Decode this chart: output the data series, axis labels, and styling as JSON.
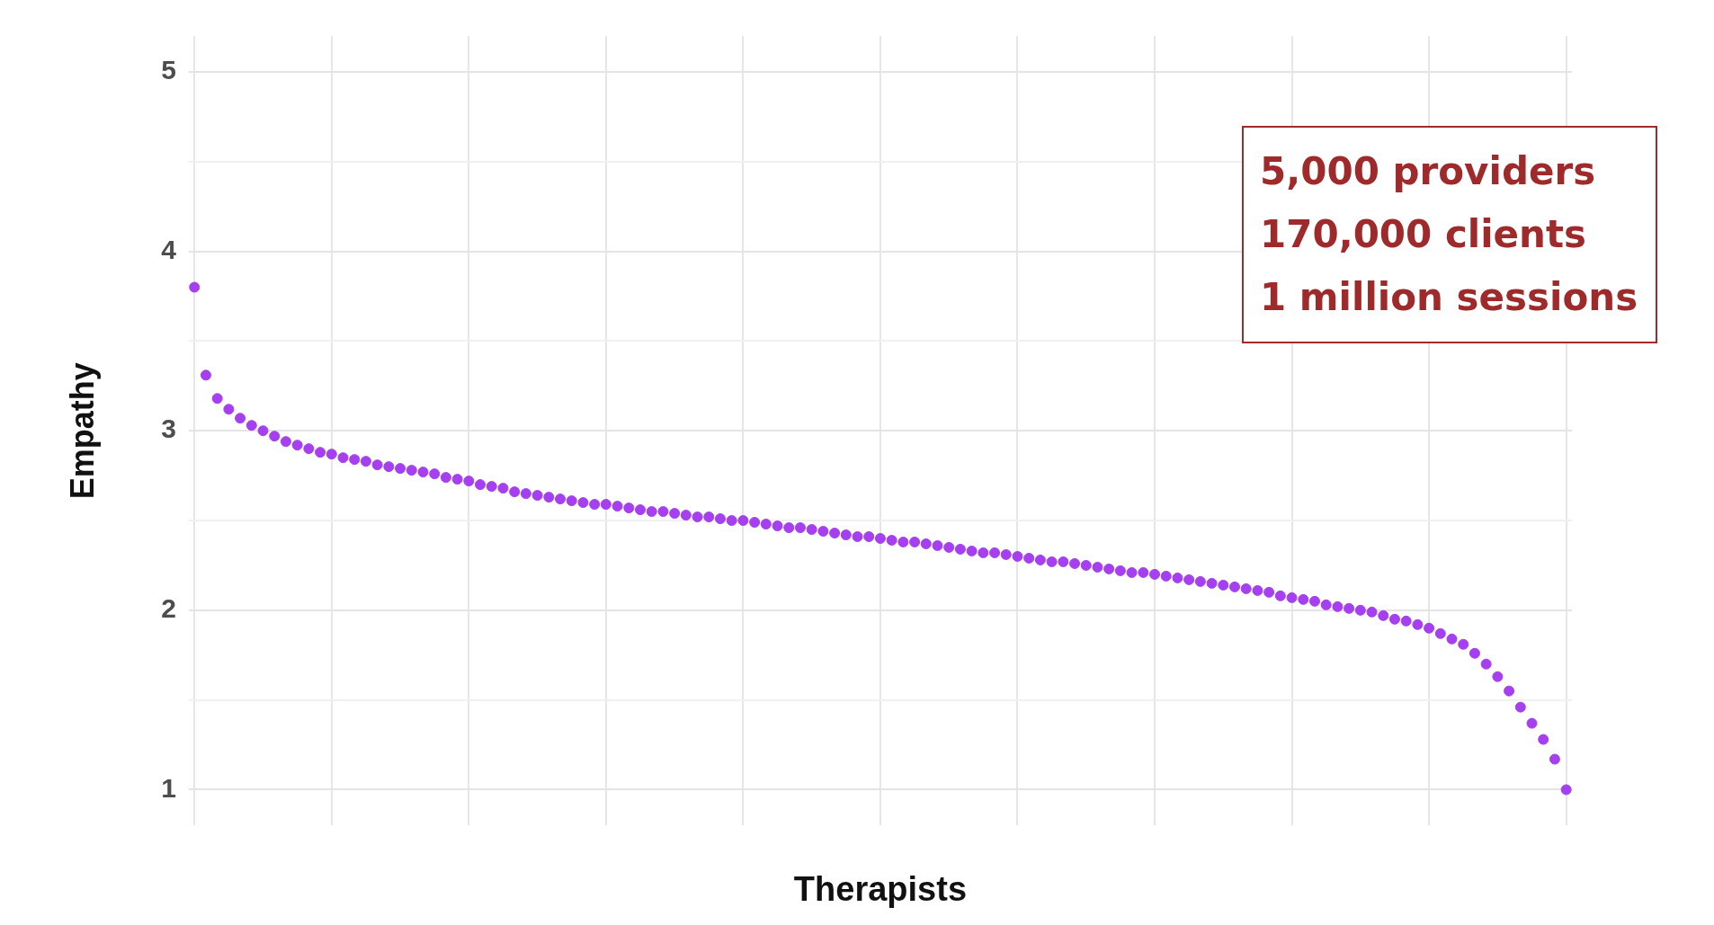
{
  "chart_data": {
    "type": "scatter",
    "xlabel": "Therapists",
    "ylabel": "Empathy",
    "categories": [
      null,
      null,
      null,
      null,
      null,
      null,
      null,
      null,
      null,
      null,
      null,
      null,
      null,
      null,
      null,
      null,
      null,
      null,
      null,
      null,
      null,
      null,
      null,
      null,
      null,
      null,
      null,
      null,
      null,
      null,
      null,
      null,
      null,
      null,
      null,
      null,
      null,
      null,
      null,
      null,
      null,
      null,
      null,
      null,
      null,
      null,
      null,
      null,
      null,
      null,
      null,
      null,
      null,
      null,
      null,
      null,
      null,
      null,
      null,
      null,
      null,
      null,
      null,
      null,
      null,
      null,
      null,
      null,
      null,
      null,
      null,
      null,
      null,
      null,
      null,
      null,
      null,
      null,
      null,
      null,
      null,
      null,
      null,
      null,
      null,
      null,
      null,
      null,
      null,
      null,
      null,
      null,
      null,
      null,
      null,
      null,
      null,
      null,
      null,
      null,
      null,
      null,
      null,
      null,
      null,
      null,
      null,
      null,
      null,
      null,
      null,
      null,
      null,
      null,
      null,
      null,
      null,
      null,
      null,
      null,
      null
    ],
    "series": [
      {
        "color": "#a53ff0",
        "values": [
          3.8,
          3.31,
          3.18,
          3.12,
          3.07,
          3.03,
          3.0,
          2.97,
          2.94,
          2.92,
          2.9,
          2.88,
          2.87,
          2.85,
          2.84,
          2.83,
          2.81,
          2.8,
          2.79,
          2.78,
          2.77,
          2.76,
          2.74,
          2.73,
          2.72,
          2.7,
          2.69,
          2.68,
          2.66,
          2.65,
          2.64,
          2.63,
          2.62,
          2.61,
          2.6,
          2.59,
          2.59,
          2.58,
          2.57,
          2.56,
          2.55,
          2.55,
          2.54,
          2.53,
          2.52,
          2.52,
          2.51,
          2.5,
          2.5,
          2.49,
          2.48,
          2.47,
          2.46,
          2.46,
          2.45,
          2.44,
          2.43,
          2.42,
          2.41,
          2.41,
          2.4,
          2.39,
          2.38,
          2.38,
          2.37,
          2.36,
          2.35,
          2.34,
          2.33,
          2.32,
          2.32,
          2.31,
          2.3,
          2.29,
          2.28,
          2.27,
          2.27,
          2.26,
          2.25,
          2.24,
          2.23,
          2.22,
          2.21,
          2.21,
          2.2,
          2.19,
          2.18,
          2.17,
          2.16,
          2.15,
          2.14,
          2.13,
          2.12,
          2.11,
          2.1,
          2.08,
          2.07,
          2.06,
          2.05,
          2.03,
          2.02,
          2.01,
          2.0,
          1.99,
          1.97,
          1.95,
          1.94,
          1.92,
          1.9,
          1.87,
          1.84,
          1.81,
          1.76,
          1.7,
          1.63,
          1.55,
          1.46,
          1.37,
          1.28,
          1.17,
          1.0
        ]
      }
    ],
    "ylim": [
      0.8,
      5.2
    ],
    "yticks": [
      1,
      {
        "value": 1.5,
        "label": null
      },
      2,
      {
        "value": 2.5,
        "label": null
      },
      3,
      {
        "value": 3.5,
        "label": null
      },
      4,
      {
        "value": 4.5,
        "label": null
      },
      5
    ],
    "grid": true,
    "tick_labels": "y",
    "marker": "circle",
    "legend": false,
    "annotations": [
      "5,000 providers",
      "170,000 clients",
      "1 million sessions"
    ]
  }
}
